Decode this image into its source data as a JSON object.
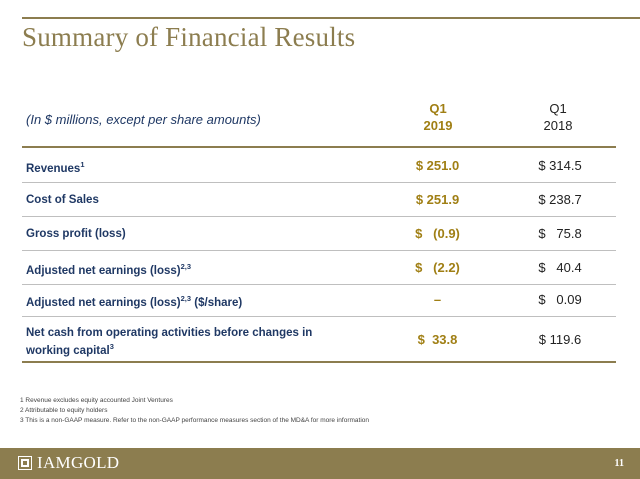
{
  "title": "Summary of Financial Results",
  "table": {
    "description": "(In $ millions, except per share amounts)",
    "col1": {
      "line1": "Q1",
      "line2": "2019"
    },
    "col2": {
      "line1": "Q1",
      "line2": "2018"
    },
    "rows": [
      {
        "label": "Revenues",
        "sup": "1",
        "suffix": "",
        "v2019": "$ 251.0",
        "v2018": "$ 314.5"
      },
      {
        "label": "Cost of Sales",
        "sup": "",
        "suffix": "",
        "v2019": "$ 251.9",
        "v2018": "$ 238.7"
      },
      {
        "label": "Gross profit (loss)",
        "sup": "",
        "suffix": "",
        "v2019": "$   (0.9)",
        "v2018": "$   75.8"
      },
      {
        "label": "Adjusted net earnings (loss)",
        "sup": "2,3",
        "suffix": "",
        "v2019": "$   (2.2)",
        "v2018": "$   40.4"
      },
      {
        "label": "Adjusted net earnings (loss)",
        "sup": "2,3",
        "suffix": " ($/share)",
        "v2019": "–",
        "v2018": "$   0.09"
      },
      {
        "label": "Net cash from operating activities before changes in",
        "label2": "working capital",
        "sup": "3",
        "suffix": "",
        "v2019": "$  33.8",
        "v2018": "$ 119.6"
      }
    ]
  },
  "footnotes": [
    "1 Revenue excludes equity accounted Joint Ventures",
    "2 Attributable to equity holders",
    "3 This is a non-GAAP measure. Refer to the non-GAAP performance measures section of the MD&A for more information"
  ],
  "footer": {
    "logo_text": "IAMGOLD",
    "page_number": "11"
  },
  "colors": {
    "accent": "#8c7d4f",
    "highlight": "#a07f14",
    "label": "#1f3864"
  }
}
